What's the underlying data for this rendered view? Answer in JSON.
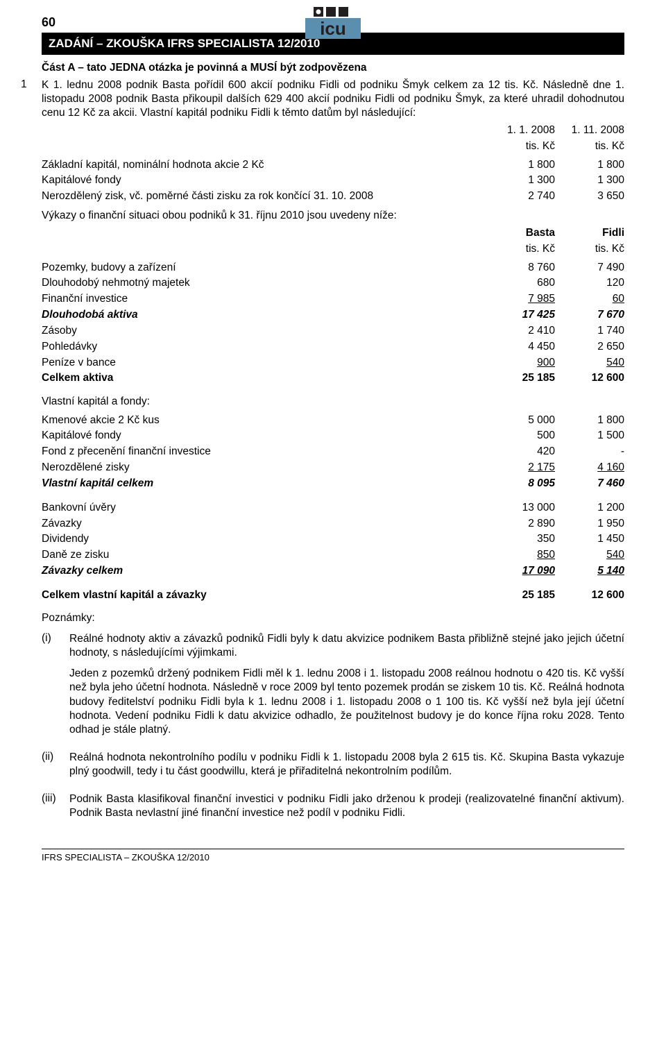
{
  "page_number": "60",
  "header_bar": "ZADÁNÍ – ZKOUŠKA IFRS SPECIALISTA 12/2010",
  "section_a": "Část A – tato JEDNA otázka je povinná a MUSÍ být zodpovězena",
  "question_num": "1",
  "intro1": "K 1. lednu 2008 podnik Basta pořídil 600 akcií podniku Fidli od podniku Šmyk celkem za 12 tis. Kč. Následně dne 1. listopadu 2008 podnik Basta přikoupil dalších 629 400 akcií podniku Fidli od podniku Šmyk, za které uhradil dohodnutou cenu 12 Kč za akcii. Vlastní kapitál podniku Fidli k těmto datům byl následující:",
  "dates_table": {
    "col1": "1. 1. 2008",
    "col2": "1. 11. 2008",
    "unit": "tis. Kč"
  },
  "table1": [
    {
      "label": "Základní kapitál, nominální hodnota akcie 2 Kč",
      "v1": "1 800",
      "v2": "1 800"
    },
    {
      "label": "Kapitálové fondy",
      "v1": "1 300",
      "v2": "1 300"
    },
    {
      "label": "Nerozdělený zisk, vč. poměrné části zisku za rok končící 31. 10. 2008",
      "v1": "2 740",
      "v2": "3 650"
    }
  ],
  "intro2": "Výkazy o finanční situaci obou podniků k 31. říjnu 2010 jsou uvedeny níže:",
  "companies": {
    "c1": "Basta",
    "c2": "Fidli",
    "unit": "tis. Kč"
  },
  "table2": [
    {
      "label": "Pozemky, budovy a zařízení",
      "v1": "8 760",
      "v2": "7 490"
    },
    {
      "label": "Dlouhodobý nehmotný majetek",
      "v1": "680",
      "v2": "120"
    },
    {
      "label": "Finanční investice",
      "v1": "7 985",
      "v2": "60",
      "u": true
    },
    {
      "label": "Dlouhodobá aktiva",
      "v1": "17 425",
      "v2": "7 670",
      "bi": true
    },
    {
      "label": "Zásoby",
      "v1": "2 410",
      "v2": "1 740"
    },
    {
      "label": "Pohledávky",
      "v1": "4 450",
      "v2": "2 650"
    },
    {
      "label": "Peníze v bance",
      "v1": "900",
      "v2": "540",
      "u": true
    },
    {
      "label": "Celkem aktiva",
      "v1": "25 185",
      "v2": "12 600",
      "b": true
    }
  ],
  "equity_header": "Vlastní kapitál a fondy:",
  "table3": [
    {
      "label": "Kmenové akcie 2 Kč kus",
      "v1": "5 000",
      "v2": "1 800"
    },
    {
      "label": "Kapitálové fondy",
      "v1": "500",
      "v2": "1 500"
    },
    {
      "label": "Fond z přecenění finanční investice",
      "v1": "420",
      "v2": "-"
    },
    {
      "label": "Nerozdělené zisky",
      "v1": "2 175",
      "v2": "4 160",
      "u": true
    },
    {
      "label": "Vlastní kapitál celkem",
      "v1": "8 095",
      "v2": "7 460",
      "bi": true
    }
  ],
  "table4": [
    {
      "label": "Bankovní úvěry",
      "v1": "13 000",
      "v2": "1 200"
    },
    {
      "label": "Závazky",
      "v1": "2 890",
      "v2": "1 950"
    },
    {
      "label": "Dividendy",
      "v1": "350",
      "v2": "1 450"
    },
    {
      "label": "Daně ze zisku",
      "v1": "850",
      "v2": "540",
      "u": true
    },
    {
      "label": "Závazky celkem",
      "v1": "17 090",
      "v2": "5 140",
      "bi": true,
      "u": true
    }
  ],
  "table5": [
    {
      "label": "Celkem vlastní kapitál a závazky",
      "v1": "25 185",
      "v2": "12 600",
      "b": true
    }
  ],
  "notes_label": "Poznámky:",
  "notes": [
    {
      "key": "(i)",
      "paras": [
        "Reálné hodnoty aktiv a závazků podniků Fidli byly k datu akvizice podnikem Basta přibližně stejné jako jejich účetní hodnoty, s následujícími výjimkami.",
        "Jeden z pozemků držený podnikem Fidli měl k 1. lednu 2008 i 1. listopadu 2008 reálnou hodnotu o 420 tis. Kč vyšší než byla jeho účetní hodnota. Následně v roce 2009 byl tento pozemek prodán se ziskem 10 tis. Kč. Reálná hodnota budovy ředitelství podniku Fidli byla k 1. lednu 2008 i 1. listopadu 2008 o 1 100 tis. Kč vyšší než byla její účetní hodnota.  Vedení podniku Fidli k datu akvizice odhadlo, že použitelnost budovy je do konce října roku 2028. Tento odhad je stále platný."
      ]
    },
    {
      "key": "(ii)",
      "paras": [
        "Reálná hodnota nekontrolního podílu v podniku Fidli k 1. listopadu 2008 byla 2 615 tis. Kč. Skupina Basta vykazuje plný goodwill, tedy i tu část goodwillu, která je přiřaditelná nekontrolním podílům."
      ]
    },
    {
      "key": "(iii)",
      "paras": [
        "Podnik Basta klasifikoval finanční investici v podniku Fidli jako drženou k prodeji (realizovatelné finanční aktivum). Podnik Basta nevlastní jiné finanční investice než podíl v podniku Fidli."
      ]
    }
  ],
  "footer": "IFRS SPECIALISTA – ZKOUŠKA 12/2010",
  "logo": {
    "bg": "#5a8fb0",
    "letters": "icu",
    "squares": [
      "#231f20",
      "#231f20",
      "#231f20"
    ],
    "dot": "#ffffff"
  }
}
